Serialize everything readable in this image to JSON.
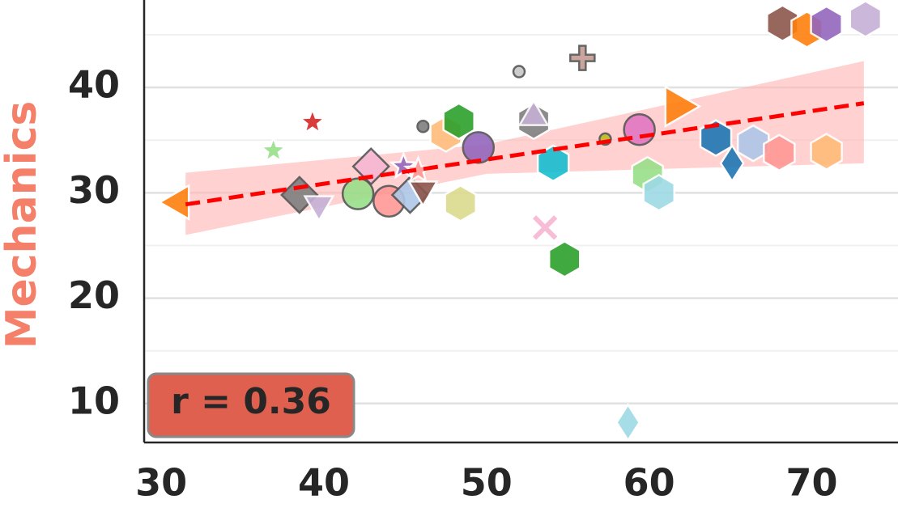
{
  "chart_data": {
    "type": "scatter",
    "y_label": "Mechanics",
    "y_label_color": "#f4806a",
    "xlim": [
      28.95,
      75.3
    ],
    "ylim": [
      6.3,
      48.3
    ],
    "xticks": [
      30,
      40,
      50,
      60,
      70
    ],
    "yticks": [
      10,
      20,
      30,
      40
    ],
    "minor_yticks": [
      15,
      25,
      35,
      45
    ],
    "grid": true,
    "series": [
      {
        "x": [
          31.1,
          36.9,
          39.3,
          38.5,
          39.7,
          42.1,
          42.9,
          44.0,
          45.3,
          44.9,
          45.8,
          46.1,
          46.1,
          47.5,
          48.3,
          49.5,
          48.4,
          52.0,
          52.9,
          52.9,
          54.1,
          53.6,
          54.8,
          55.9,
          57.3,
          59.4,
          61.7,
          59.9,
          60.6,
          58.7,
          64.1,
          65.1,
          66.4,
          68.0,
          70.9,
          68.2,
          69.7,
          70.9,
          73.3
        ],
        "values": [
          29.1,
          34.0,
          36.7,
          29.8,
          28.9,
          29.9,
          32.5,
          29.2,
          29.8,
          32.5,
          32.1,
          30.3,
          36.3,
          35.6,
          36.8,
          34.3,
          29.0,
          41.5,
          36.8,
          37.2,
          32.8,
          26.7,
          23.7,
          42.8,
          35.1,
          36.0,
          38.2,
          31.7,
          30.0,
          8.2,
          35.2,
          32.8,
          34.7,
          33.8,
          33.9,
          46.1,
          45.5,
          46.0,
          46.5
        ],
        "colors": [
          "#ff7f0e",
          "#98df8a",
          "#d62728",
          "#7f7f7f",
          "#c5b0d5",
          "#98df8a",
          "#f7b6d2",
          "#ff9896",
          "#aec7e8",
          "#9467bd",
          "#ff9896",
          "#8c564b",
          "#7f7f7f",
          "#ffbb78",
          "#2ca02c",
          "#9467bd",
          "#dbdb8d",
          "#c7c7c7",
          "#7f7f7f",
          "#c5b0d5",
          "#17becf",
          "#f7b6d2",
          "#2ca02c",
          "#c49c94",
          "#bcbd22",
          "#e377c2",
          "#ff7f0e",
          "#98df8a",
          "#9edae5",
          "#9edae5",
          "#1f77b4",
          "#1f77b4",
          "#aec7e8",
          "#ff9896",
          "#ffbb78",
          "#8c564b",
          "#ff7f0e",
          "#9467bd",
          "#c5b0d5"
        ],
        "markers": [
          "triangle-left",
          "star",
          "star",
          "diamond",
          "triangle-down",
          "circle",
          "diamond",
          "circle",
          "diamond",
          "star",
          "star",
          "triangle-down",
          "point",
          "hexagon",
          "hexagon",
          "circle",
          "hexagon",
          "point",
          "hexagon",
          "triangle-up",
          "hexagon",
          "x",
          "hexagon",
          "plus",
          "point",
          "circle",
          "triangle-right",
          "hexagon",
          "hexagon",
          "thin-diamond",
          "hexagon",
          "thin-diamond",
          "hexagon",
          "hexagon",
          "hexagon",
          "hexagon",
          "hexagon",
          "hexagon",
          "hexagon"
        ]
      }
    ],
    "fit": {
      "x": [
        31.5,
        73.2
      ],
      "y": [
        28.9,
        38.5
      ],
      "color": "#ff0000"
    },
    "band": {
      "x": [
        31.5,
        50,
        73.2
      ],
      "lower": [
        26.0,
        31.8,
        32.8
      ],
      "upper": [
        31.9,
        34.6,
        42.5
      ],
      "color": "#ffb3b3"
    },
    "annotation": "r = 0.36",
    "annotation_color": "#e0604f"
  }
}
